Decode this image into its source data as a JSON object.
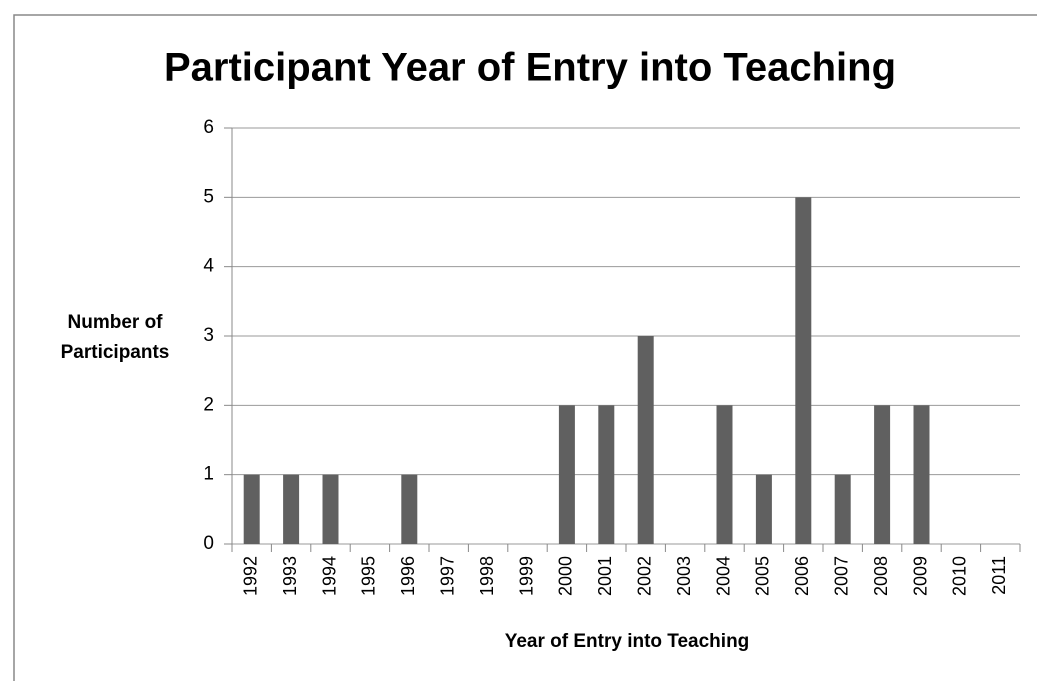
{
  "chart_data": {
    "type": "bar",
    "title": "Participant Year of Entry into Teaching",
    "xlabel": "Year of Entry into Teaching",
    "ylabel": "Number of Participants",
    "categories": [
      "1992",
      "1993",
      "1994",
      "1995",
      "1996",
      "1997",
      "1998",
      "1999",
      "2000",
      "2001",
      "2002",
      "2003",
      "2004",
      "2005",
      "2006",
      "2007",
      "2008",
      "2009",
      "2010",
      "2011"
    ],
    "values": [
      1,
      1,
      1,
      0,
      1,
      0,
      0,
      0,
      2,
      2,
      3,
      0,
      2,
      1,
      5,
      1,
      2,
      2,
      0,
      0
    ],
    "color": "#606060",
    "ylim": [
      0,
      6
    ],
    "yticks": [
      0,
      1,
      2,
      3,
      4,
      5,
      6
    ],
    "grid": true
  }
}
